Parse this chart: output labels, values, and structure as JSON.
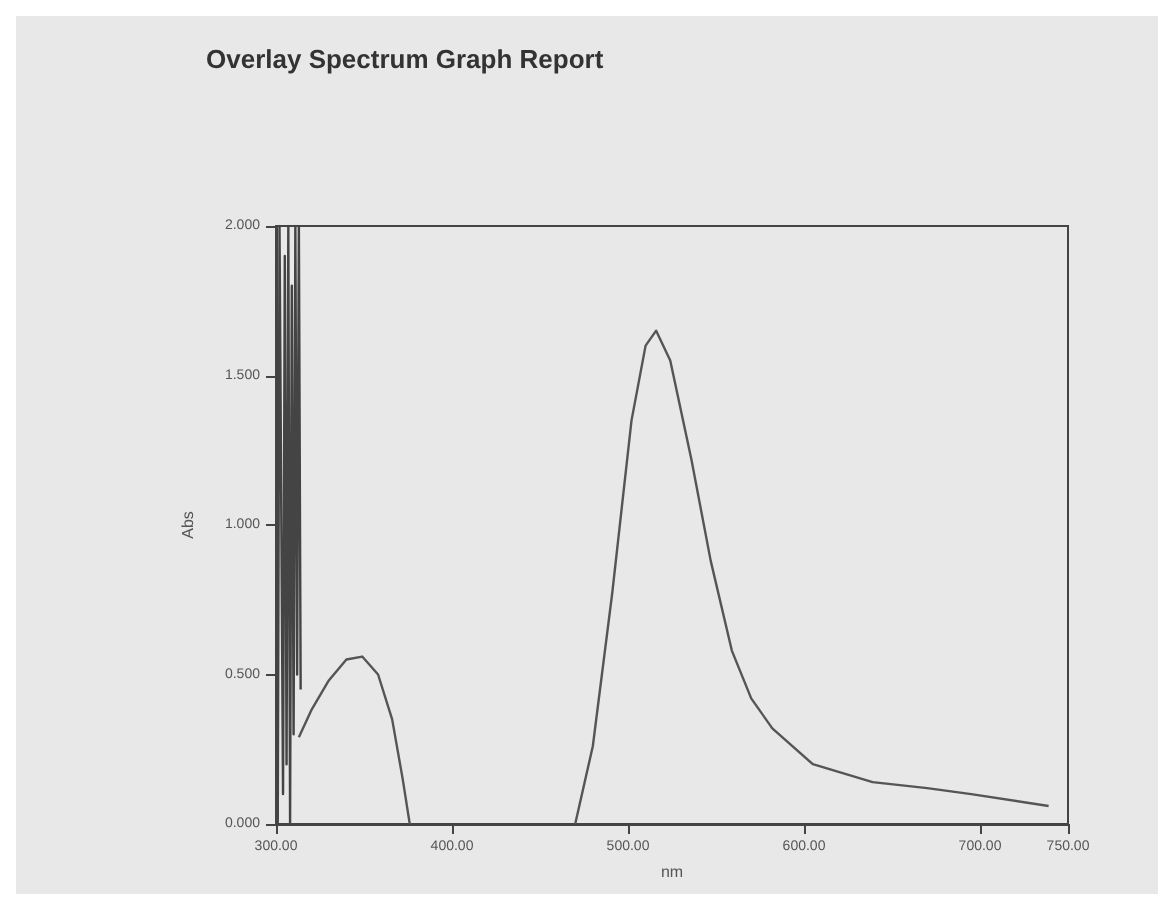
{
  "chart_data": {
    "type": "line",
    "title": "Overlay Spectrum Graph Report",
    "xlabel": "nm",
    "ylabel": "Abs",
    "xlim": [
      300,
      750
    ],
    "xticks": [
      {
        "value": 300,
        "label": "300.00"
      },
      {
        "value": 400,
        "label": "400.00"
      },
      {
        "value": 500,
        "label": "500.00"
      },
      {
        "value": 600,
        "label": "600.00"
      },
      {
        "value": 700,
        "label": "700.00"
      },
      {
        "value": 750,
        "label": "750.00"
      }
    ],
    "ylim": [
      0,
      2
    ],
    "yticks": [
      {
        "value": 0,
        "label": "0.000"
      },
      {
        "value": 0.5,
        "label": "0.500"
      },
      {
        "value": 1,
        "label": "1.000"
      },
      {
        "value": 1.5,
        "label": "1.500"
      },
      {
        "value": 2,
        "label": "2.000"
      }
    ],
    "series": [
      {
        "color": "#444444",
        "x": [
          301,
          302,
          304,
          305,
          306,
          307,
          308,
          309,
          310,
          311,
          312,
          313,
          314
        ],
        "values": [
          0,
          2,
          0.1,
          1.9,
          0.2,
          2,
          0,
          1.8,
          0.3,
          2,
          0.5,
          2,
          0.45
        ]
      },
      {
        "color": "#555555",
        "x": [
          313,
          320,
          330,
          340,
          349,
          358,
          366,
          372,
          376
        ],
        "values": [
          0.29,
          0.38,
          0.48,
          0.55,
          0.56,
          0.5,
          0.35,
          0.15,
          0
        ]
      },
      {
        "color": "#555555",
        "x": [
          470,
          480,
          491,
          502,
          510,
          516,
          524,
          536,
          547,
          559,
          570,
          582,
          605,
          639,
          670,
          695,
          739
        ],
        "values": [
          0,
          0.26,
          0.77,
          1.35,
          1.6,
          1.65,
          1.55,
          1.22,
          0.88,
          0.58,
          0.42,
          0.32,
          0.2,
          0.14,
          0.12,
          0.1,
          0.06
        ]
      }
    ]
  }
}
